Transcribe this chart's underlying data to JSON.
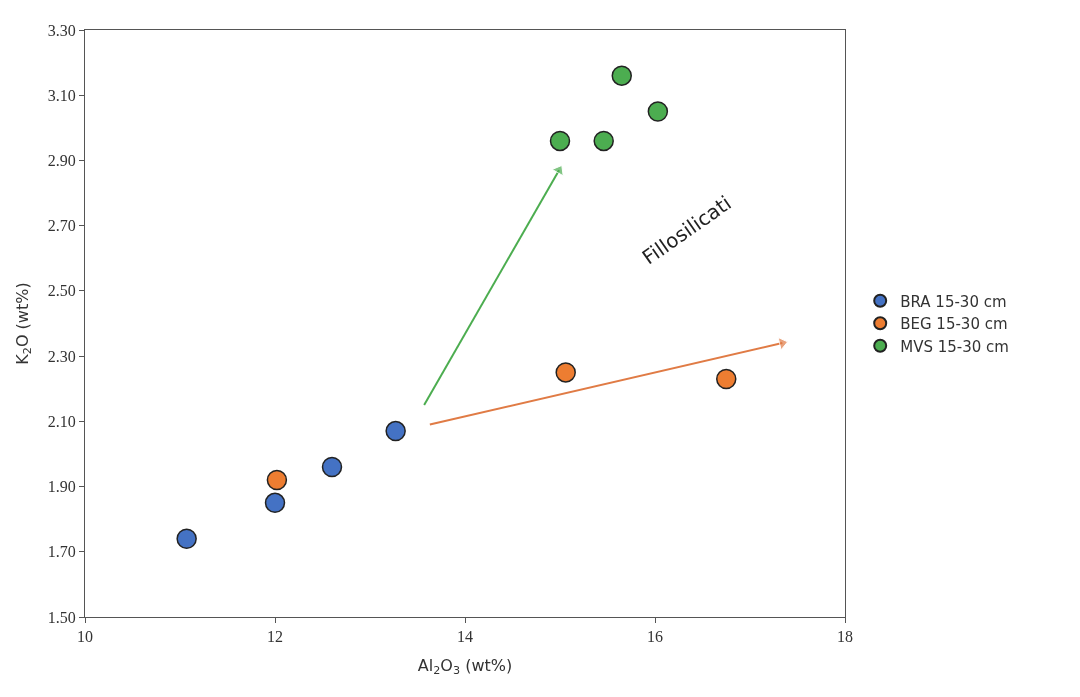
{
  "chart_data": {
    "type": "scatter",
    "xlabel": "Al$_{2}$O$_{3}$ (wt%)",
    "ylabel": "K$_{2}$O (wt%)",
    "xlim": [
      10,
      18
    ],
    "xticks": [
      10,
      12,
      14,
      16,
      18
    ],
    "ylim": [
      1.5,
      3.3
    ],
    "yticks": [
      {
        "value": 1.5,
        "label": "1.50"
      },
      {
        "value": 1.7,
        "label": "1.70"
      },
      {
        "value": 1.9,
        "label": "1.90"
      },
      {
        "value": 2.1,
        "label": "2.10"
      },
      {
        "value": 2.3,
        "label": "2.30"
      },
      {
        "value": 2.5,
        "label": "2.50"
      },
      {
        "value": 2.7,
        "label": "2.70"
      },
      {
        "value": 2.9,
        "label": "2.90"
      },
      {
        "value": 3.1,
        "label": "3.10"
      },
      {
        "value": 3.3,
        "label": "3.30"
      }
    ],
    "legend": "right",
    "marker": "circle",
    "series": [
      {
        "name": "BRA 15-30 cm",
        "color": "#4472c4",
        "x": [
          11.07,
          12.0,
          12.6,
          13.27
        ],
        "values": [
          1.74,
          1.85,
          1.96,
          2.07
        ]
      },
      {
        "name": "BEG 15-30 cm",
        "color": "#ed7d31",
        "x": [
          12.02,
          15.06,
          16.75
        ],
        "values": [
          1.92,
          2.25,
          2.23
        ]
      },
      {
        "name": "MVS 15-30 cm",
        "color": "#4cad50",
        "x": [
          15.0,
          15.46,
          15.65,
          16.03
        ],
        "values": [
          2.96,
          2.96,
          3.16,
          3.05
        ]
      },
      {
        "type": "line",
        "color": "#4cad50",
        "marker": "triangle",
        "x": [
          13.57,
          14.99
        ],
        "values": [
          2.15,
          2.87
        ]
      },
      {
        "type": "line",
        "color": "#e07b45",
        "marker": "triangle",
        "x": [
          13.63,
          17.34
        ],
        "values": [
          2.09,
          2.34
        ]
      }
    ],
    "annotations": [
      "Fillosilicati"
    ]
  }
}
